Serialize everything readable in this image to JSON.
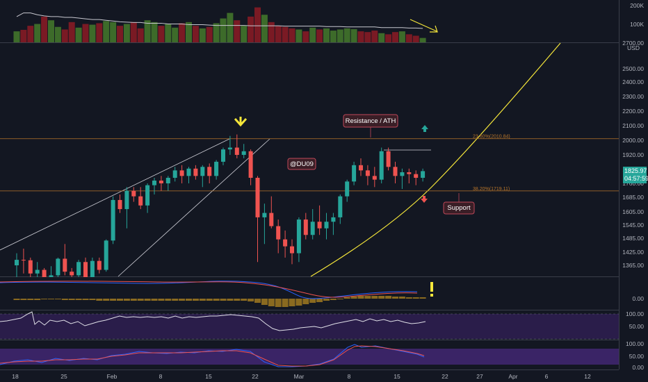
{
  "theme": {
    "background": "#131722",
    "up_color": "#26a69a",
    "down_color": "#ef5350",
    "vol_up_color": "#3d6b2a",
    "vol_down_color": "#7a1a24",
    "fib_line_color": "#b8752a",
    "trendline_color": "#f5e63a",
    "arrow_yellow": "#f5e63a",
    "arrow_green": "#26a69a",
    "arrow_red": "#ef5350",
    "rsi_fill": "#2a1d4a",
    "stoch_fill": "#3a2466",
    "badge_price_bg": "#26a69a",
    "badge_annot_bg": "#3a1e26",
    "badge_annot_border": "#c0485a"
  },
  "price_badge": {
    "price": "1825.97",
    "countdown": "04:57:59"
  },
  "currency_label": "USD",
  "chart_data": {
    "type": "candlestick",
    "x_labels": [
      "18",
      "25",
      "Feb",
      "8",
      "15",
      "22",
      "Mar",
      "8",
      "15",
      "22",
      "27",
      "Apr",
      "6",
      "12"
    ],
    "y_ticks": [
      "2700.00",
      "2500.00",
      "2400.00",
      "2300.00",
      "2200.00",
      "2100.00",
      "2000.00",
      "1920.00",
      "1835.00",
      "1760.00",
      "1685.00",
      "1605.00",
      "1545.00",
      "1485.00",
      "1425.00",
      "1365.00"
    ],
    "y_range": [
      1300,
      2700
    ],
    "volume_ticks": [
      "200K",
      "100K"
    ],
    "macd_ticks": [
      "0.00"
    ],
    "rsi_ticks": [
      "100.00",
      "50.00"
    ],
    "stoch_ticks": [
      "100.00",
      "50.00",
      "0.00"
    ],
    "candles": [
      {
        "date": "Jan 19",
        "o": 1365,
        "h": 1420,
        "l": 1300,
        "c": 1390
      },
      {
        "date": "Jan 20",
        "o": 1390,
        "h": 1440,
        "l": 1320,
        "c": 1388
      },
      {
        "date": "Jan 21",
        "o": 1388,
        "h": 1400,
        "l": 1290,
        "c": 1320
      },
      {
        "date": "Jan 22",
        "o": 1320,
        "h": 1380,
        "l": 1290,
        "c": 1340
      },
      {
        "date": "Jan 23",
        "o": 1340,
        "h": 1350,
        "l": 1280,
        "c": 1300
      },
      {
        "date": "Jan 24",
        "o": 1300,
        "h": 1360,
        "l": 1280,
        "c": 1310
      },
      {
        "date": "Jan 25",
        "o": 1310,
        "h": 1400,
        "l": 1290,
        "c": 1395
      },
      {
        "date": "Jan 26",
        "o": 1395,
        "h": 1460,
        "l": 1310,
        "c": 1330
      },
      {
        "date": "Jan 27",
        "o": 1330,
        "h": 1350,
        "l": 1290,
        "c": 1310
      },
      {
        "date": "Jan 28",
        "o": 1310,
        "h": 1390,
        "l": 1295,
        "c": 1380
      },
      {
        "date": "Jan 29",
        "o": 1380,
        "h": 1400,
        "l": 1280,
        "c": 1300
      },
      {
        "date": "Jan 30",
        "o": 1300,
        "h": 1400,
        "l": 1290,
        "c": 1385
      },
      {
        "date": "Jan 31",
        "o": 1385,
        "h": 1400,
        "l": 1320,
        "c": 1340
      },
      {
        "date": "Feb 1",
        "o": 1340,
        "h": 1480,
        "l": 1330,
        "c": 1475
      },
      {
        "date": "Feb 2",
        "o": 1475,
        "h": 1690,
        "l": 1460,
        "c": 1670
      },
      {
        "date": "Feb 3",
        "o": 1670,
        "h": 1700,
        "l": 1600,
        "c": 1620
      },
      {
        "date": "Feb 4",
        "o": 1620,
        "h": 1740,
        "l": 1530,
        "c": 1720
      },
      {
        "date": "Feb 5",
        "o": 1720,
        "h": 1740,
        "l": 1660,
        "c": 1690
      },
      {
        "date": "Feb 6",
        "o": 1690,
        "h": 1740,
        "l": 1620,
        "c": 1640
      },
      {
        "date": "Feb 7",
        "o": 1640,
        "h": 1760,
        "l": 1600,
        "c": 1750
      },
      {
        "date": "Feb 8",
        "o": 1750,
        "h": 1790,
        "l": 1700,
        "c": 1775
      },
      {
        "date": "Feb 9",
        "o": 1775,
        "h": 1800,
        "l": 1720,
        "c": 1760
      },
      {
        "date": "Feb 10",
        "o": 1760,
        "h": 1800,
        "l": 1720,
        "c": 1790
      },
      {
        "date": "Feb 11",
        "o": 1790,
        "h": 1850,
        "l": 1770,
        "c": 1830
      },
      {
        "date": "Feb 12",
        "o": 1830,
        "h": 1860,
        "l": 1760,
        "c": 1800
      },
      {
        "date": "Feb 13",
        "o": 1800,
        "h": 1850,
        "l": 1760,
        "c": 1840
      },
      {
        "date": "Feb 14",
        "o": 1840,
        "h": 1860,
        "l": 1780,
        "c": 1800
      },
      {
        "date": "Feb 15",
        "o": 1800,
        "h": 1860,
        "l": 1740,
        "c": 1850
      },
      {
        "date": "Feb 16",
        "o": 1850,
        "h": 1870,
        "l": 1760,
        "c": 1800
      },
      {
        "date": "Feb 17",
        "o": 1800,
        "h": 1890,
        "l": 1780,
        "c": 1880
      },
      {
        "date": "Feb 18",
        "o": 1880,
        "h": 1960,
        "l": 1860,
        "c": 1950
      },
      {
        "date": "Feb 19",
        "o": 1950,
        "h": 2030,
        "l": 1920,
        "c": 1960
      },
      {
        "date": "Feb 20",
        "o": 1960,
        "h": 2040,
        "l": 1900,
        "c": 1920
      },
      {
        "date": "Feb 21",
        "o": 1920,
        "h": 1980,
        "l": 1900,
        "c": 1940
      },
      {
        "date": "Feb 22",
        "o": 1940,
        "h": 1950,
        "l": 1750,
        "c": 1790
      },
      {
        "date": "Feb 23",
        "o": 1790,
        "h": 1800,
        "l": 1380,
        "c": 1580
      },
      {
        "date": "Feb 24",
        "o": 1580,
        "h": 1650,
        "l": 1460,
        "c": 1600
      },
      {
        "date": "Feb 25",
        "o": 1600,
        "h": 1690,
        "l": 1530,
        "c": 1540
      },
      {
        "date": "Feb 26",
        "o": 1540,
        "h": 1570,
        "l": 1420,
        "c": 1480
      },
      {
        "date": "Feb 27",
        "o": 1480,
        "h": 1520,
        "l": 1400,
        "c": 1450
      },
      {
        "date": "Feb 28",
        "o": 1450,
        "h": 1480,
        "l": 1370,
        "c": 1420
      },
      {
        "date": "Mar 1",
        "o": 1420,
        "h": 1580,
        "l": 1380,
        "c": 1570
      },
      {
        "date": "Mar 2",
        "o": 1570,
        "h": 1600,
        "l": 1480,
        "c": 1500
      },
      {
        "date": "Mar 3",
        "o": 1500,
        "h": 1620,
        "l": 1480,
        "c": 1560
      },
      {
        "date": "Mar 4",
        "o": 1560,
        "h": 1640,
        "l": 1500,
        "c": 1530
      },
      {
        "date": "Mar 5",
        "o": 1530,
        "h": 1600,
        "l": 1480,
        "c": 1560
      },
      {
        "date": "Mar 6",
        "o": 1560,
        "h": 1600,
        "l": 1500,
        "c": 1580
      },
      {
        "date": "Mar 7",
        "o": 1580,
        "h": 1700,
        "l": 1550,
        "c": 1690
      },
      {
        "date": "Mar 8",
        "o": 1690,
        "h": 1780,
        "l": 1660,
        "c": 1770
      },
      {
        "date": "Mar 9",
        "o": 1770,
        "h": 1880,
        "l": 1750,
        "c": 1860
      },
      {
        "date": "Mar 10",
        "o": 1860,
        "h": 1900,
        "l": 1800,
        "c": 1830
      },
      {
        "date": "Mar 11",
        "o": 1830,
        "h": 1860,
        "l": 1750,
        "c": 1800
      },
      {
        "date": "Mar 12",
        "o": 1800,
        "h": 1850,
        "l": 1740,
        "c": 1780
      },
      {
        "date": "Mar 13",
        "o": 1780,
        "h": 1960,
        "l": 1760,
        "c": 1940
      },
      {
        "date": "Mar 14",
        "o": 1940,
        "h": 1960,
        "l": 1830,
        "c": 1850
      },
      {
        "date": "Mar 15",
        "o": 1850,
        "h": 1880,
        "l": 1760,
        "c": 1800
      },
      {
        "date": "Mar 16",
        "o": 1800,
        "h": 1840,
        "l": 1730,
        "c": 1820
      },
      {
        "date": "Mar 17",
        "o": 1820,
        "h": 1840,
        "l": 1760,
        "c": 1810
      },
      {
        "date": "Mar 18",
        "o": 1810,
        "h": 1830,
        "l": 1750,
        "c": 1790
      },
      {
        "date": "Mar 19",
        "o": 1790,
        "h": 1840,
        "l": 1770,
        "c": 1826
      }
    ],
    "volume": [
      30,
      34,
      45,
      50,
      70,
      60,
      42,
      35,
      55,
      40,
      50,
      48,
      52,
      58,
      55,
      45,
      50,
      55,
      38,
      60,
      55,
      45,
      50,
      40,
      52,
      55,
      45,
      38,
      42,
      52,
      65,
      80,
      60,
      45,
      70,
      95,
      75,
      55,
      45,
      42,
      38,
      35,
      30,
      40,
      35,
      38,
      32,
      35,
      38,
      36,
      30,
      28,
      32,
      25,
      22,
      28,
      30,
      22,
      18,
      12
    ],
    "volume_avg": [
      70,
      80,
      80,
      75,
      72,
      70,
      70,
      68,
      68,
      66,
      64,
      62,
      62,
      60,
      58,
      56,
      55,
      54,
      54,
      52,
      52,
      52,
      50,
      50,
      50,
      48,
      48,
      48,
      47,
      46,
      46,
      46,
      46,
      46,
      45,
      45,
      45,
      45,
      45,
      44,
      44,
      44,
      44,
      44,
      44,
      43,
      43,
      43,
      42,
      42,
      42,
      42,
      42,
      40,
      40,
      40,
      40,
      39,
      39,
      38
    ],
    "fib_levels": [
      {
        "label": "23.60%(2010.84)",
        "value": 2010.84
      },
      {
        "label": "38.20%(1719.11)",
        "value": 1719.11
      }
    ],
    "annotations": {
      "resistance": "Resistance / ATH",
      "support": "Support",
      "watermark": "@DU09"
    }
  }
}
